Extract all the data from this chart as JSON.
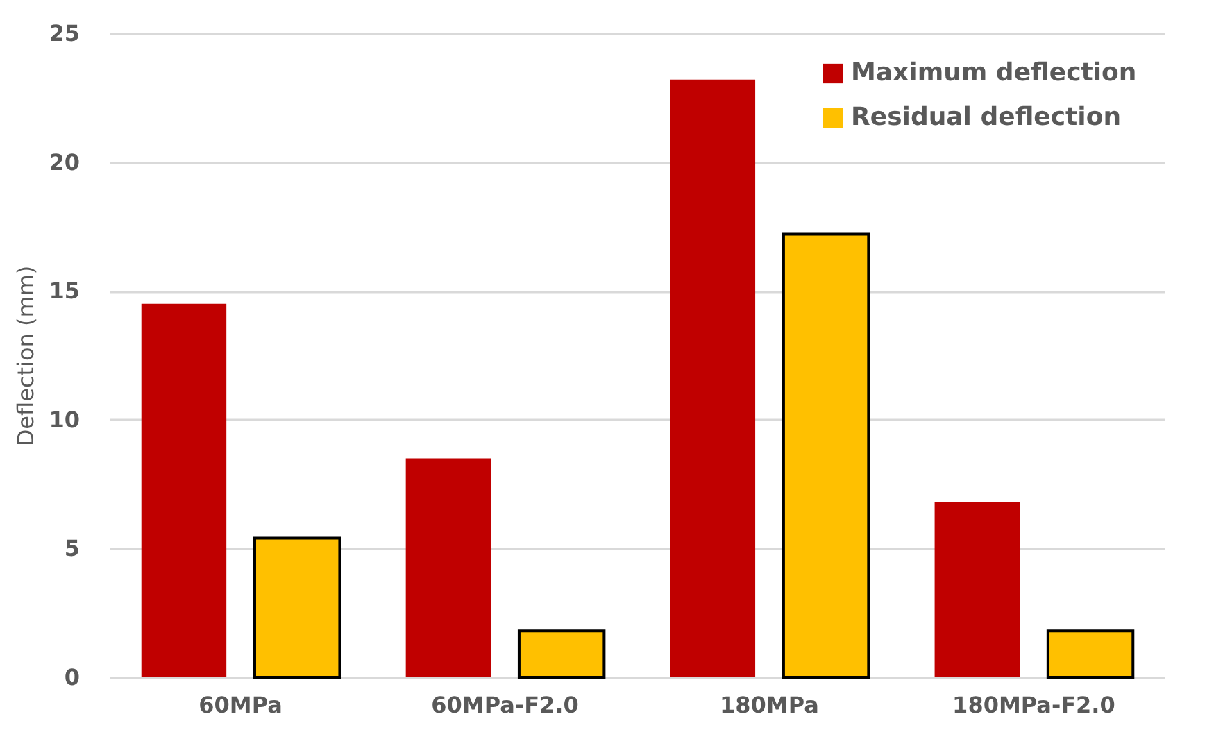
{
  "chart_data": {
    "type": "bar",
    "ylabel": "Deflection (mm)",
    "categories": [
      "60MPa",
      "60MPa-F2.0",
      "180MPa",
      "180MPa-F2.0"
    ],
    "series": [
      {
        "name": "Maximum deflection",
        "color": "#c00000",
        "values": [
          14.5,
          8.5,
          23.2,
          6.8
        ]
      },
      {
        "name": "Residual deflection",
        "color": "#ffc000",
        "values": [
          5.4,
          1.8,
          17.2,
          1.8
        ]
      }
    ],
    "ylim": [
      0,
      25
    ],
    "yticks": [
      0,
      5,
      10,
      15,
      20,
      25
    ],
    "grid": "y",
    "legend": "top right"
  }
}
